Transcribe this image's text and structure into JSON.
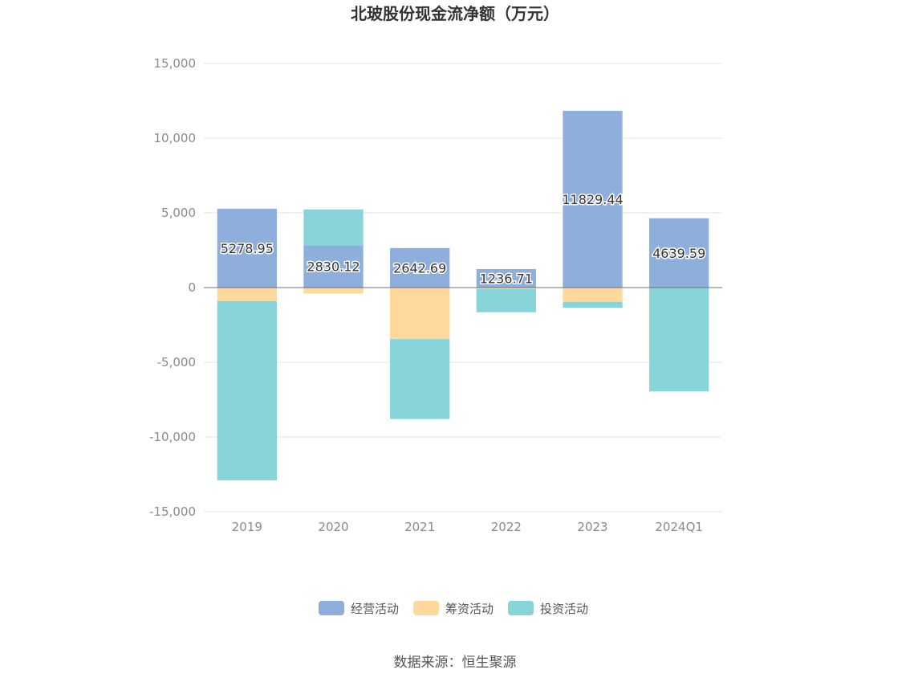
{
  "chart_data": {
    "type": "bar",
    "stacked": true,
    "title": "北玻股份现金流净额（万元）",
    "categories": [
      "2019",
      "2020",
      "2021",
      "2022",
      "2023",
      "2024Q1"
    ],
    "series": [
      {
        "name": "经营活动",
        "color": "#8eaedb",
        "values": [
          5278.95,
          2830.12,
          2642.69,
          1236.71,
          11829.44,
          4639.59
        ]
      },
      {
        "name": "筹资活动",
        "color": "#ffd99c",
        "values": [
          -900,
          -400,
          -3450,
          -100,
          -950,
          0
        ]
      },
      {
        "name": "投资活动",
        "color": "#87d5d9",
        "values": [
          -12000,
          2400,
          -5350,
          -1550,
          -400,
          -6950
        ]
      }
    ],
    "data_labels_series": "经营活动",
    "ylim": [
      -15000,
      15000
    ],
    "yticks": [
      15000,
      10000,
      5000,
      0,
      -5000,
      -10000,
      -15000
    ],
    "ytick_labels": [
      "15,000",
      "10,000",
      "5,000",
      "0",
      "-5,000",
      "-10,000",
      "-15,000"
    ],
    "grid": true,
    "legend_position": "bottom"
  },
  "source_text": "数据来源：恒生聚源"
}
